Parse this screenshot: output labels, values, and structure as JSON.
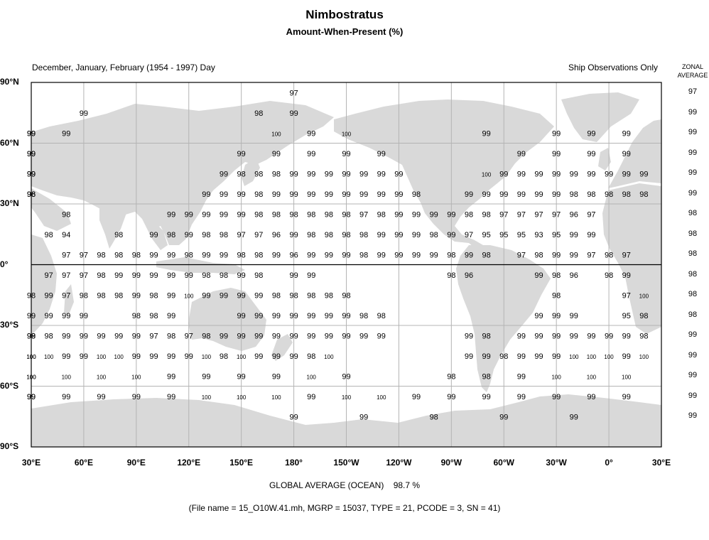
{
  "title": "Nimbostratus",
  "subtitle": "Amount-When-Present (%)",
  "header_left": "December, January, February (1954 - 1997) Day",
  "header_right": "Ship Observations Only",
  "zonal_title_line1": "ZONAL",
  "zonal_title_line2": "AVERAGE",
  "lat_labels": [
    "90°N",
    "60°N",
    "30°N",
    "0°",
    "30°S",
    "60°S",
    "90°S"
  ],
  "lon_labels": [
    "30°E",
    "60°E",
    "90°E",
    "120°E",
    "150°E",
    "180°",
    "150°W",
    "120°W",
    "90°W",
    "60°W",
    "30°W",
    "0°",
    "30°E"
  ],
  "zonal_averages": [
    97,
    99,
    99,
    99,
    99,
    99,
    98,
    98,
    98,
    98,
    98,
    98,
    99,
    99,
    99,
    99,
    99
  ],
  "global_average_label": "GLOBAL AVERAGE (OCEAN)",
  "global_average_value": "98.7 %",
  "file_info": "(File name = 15_O10W.41.mh, MGRP = 15037, TYPE = 21, PCODE = 3, SN = 41)",
  "colors": {
    "land": "#d9d9d9",
    "grid": "#b4b4b4",
    "frame": "#000000"
  },
  "grid_rows": [
    {
      "lat": 85,
      "cells": [
        [
          180,
          97
        ]
      ]
    },
    {
      "lat": 75,
      "cells": [
        [
          60,
          99
        ],
        [
          180,
          99
        ],
        [
          160,
          98
        ]
      ]
    },
    {
      "lat": 65,
      "cells": [
        [
          30,
          99
        ],
        [
          50,
          99
        ],
        [
          170,
          100
        ],
        [
          190,
          99
        ],
        [
          210,
          100
        ],
        [
          290,
          99
        ],
        [
          330,
          99
        ],
        [
          350,
          99
        ],
        [
          10,
          99
        ],
        [
          30,
          99
        ]
      ]
    },
    {
      "lat": 55,
      "cells": [
        [
          30,
          99
        ],
        [
          150,
          99
        ],
        [
          170,
          99
        ],
        [
          190,
          99
        ],
        [
          210,
          99
        ],
        [
          230,
          99
        ],
        [
          310,
          99
        ],
        [
          330,
          99
        ],
        [
          350,
          99
        ],
        [
          10,
          99
        ],
        [
          30,
          99
        ]
      ]
    },
    {
      "lat": 45,
      "cells": [
        [
          30,
          99
        ],
        [
          140,
          99
        ],
        [
          150,
          98
        ],
        [
          160,
          98
        ],
        [
          170,
          98
        ],
        [
          180,
          99
        ],
        [
          190,
          99
        ],
        [
          200,
          99
        ],
        [
          210,
          99
        ],
        [
          220,
          99
        ],
        [
          230,
          99
        ],
        [
          240,
          99
        ],
        [
          290,
          100
        ],
        [
          300,
          99
        ],
        [
          310,
          99
        ],
        [
          320,
          99
        ],
        [
          330,
          99
        ],
        [
          340,
          99
        ],
        [
          350,
          99
        ],
        [
          0,
          99
        ],
        [
          10,
          99
        ],
        [
          20,
          99
        ],
        [
          30,
          99
        ]
      ]
    },
    {
      "lat": 35,
      "cells": [
        [
          30,
          96
        ],
        [
          130,
          99
        ],
        [
          140,
          99
        ],
        [
          150,
          99
        ],
        [
          160,
          98
        ],
        [
          170,
          99
        ],
        [
          180,
          99
        ],
        [
          190,
          99
        ],
        [
          200,
          99
        ],
        [
          210,
          99
        ],
        [
          220,
          99
        ],
        [
          230,
          99
        ],
        [
          240,
          99
        ],
        [
          250,
          98
        ],
        [
          280,
          99
        ],
        [
          290,
          99
        ],
        [
          300,
          99
        ],
        [
          310,
          99
        ],
        [
          320,
          99
        ],
        [
          330,
          99
        ],
        [
          340,
          98
        ],
        [
          350,
          98
        ],
        [
          0,
          98
        ],
        [
          10,
          98
        ],
        [
          20,
          98
        ],
        [
          30,
          98
        ]
      ]
    },
    {
      "lat": 25,
      "cells": [
        [
          50,
          98
        ],
        [
          110,
          99
        ],
        [
          120,
          99
        ],
        [
          130,
          99
        ],
        [
          140,
          99
        ],
        [
          150,
          99
        ],
        [
          160,
          98
        ],
        [
          170,
          98
        ],
        [
          180,
          98
        ],
        [
          190,
          98
        ],
        [
          200,
          98
        ],
        [
          210,
          98
        ],
        [
          220,
          97
        ],
        [
          230,
          98
        ],
        [
          240,
          99
        ],
        [
          250,
          99
        ],
        [
          260,
          99
        ],
        [
          270,
          99
        ],
        [
          280,
          98
        ],
        [
          290,
          98
        ],
        [
          300,
          97
        ],
        [
          310,
          97
        ],
        [
          320,
          97
        ],
        [
          330,
          97
        ],
        [
          340,
          96
        ],
        [
          350,
          97
        ]
      ]
    },
    {
      "lat": 15,
      "cells": [
        [
          40,
          98
        ],
        [
          50,
          94
        ],
        [
          80,
          98
        ],
        [
          100,
          99
        ],
        [
          110,
          98
        ],
        [
          120,
          99
        ],
        [
          130,
          98
        ],
        [
          140,
          98
        ],
        [
          150,
          97
        ],
        [
          160,
          97
        ],
        [
          170,
          96
        ],
        [
          180,
          99
        ],
        [
          190,
          98
        ],
        [
          200,
          98
        ],
        [
          210,
          98
        ],
        [
          220,
          98
        ],
        [
          230,
          99
        ],
        [
          240,
          99
        ],
        [
          250,
          99
        ],
        [
          260,
          98
        ],
        [
          270,
          99
        ],
        [
          280,
          97
        ],
        [
          290,
          95
        ],
        [
          300,
          95
        ],
        [
          310,
          95
        ],
        [
          320,
          93
        ],
        [
          330,
          95
        ],
        [
          340,
          99
        ],
        [
          350,
          99
        ]
      ]
    },
    {
      "lat": 5,
      "cells": [
        [
          50,
          97
        ],
        [
          60,
          97
        ],
        [
          70,
          98
        ],
        [
          80,
          98
        ],
        [
          90,
          98
        ],
        [
          100,
          99
        ],
        [
          110,
          99
        ],
        [
          120,
          98
        ],
        [
          130,
          99
        ],
        [
          140,
          99
        ],
        [
          150,
          98
        ],
        [
          160,
          98
        ],
        [
          170,
          99
        ],
        [
          180,
          96
        ],
        [
          190,
          99
        ],
        [
          200,
          99
        ],
        [
          210,
          99
        ],
        [
          220,
          98
        ],
        [
          230,
          99
        ],
        [
          240,
          99
        ],
        [
          250,
          99
        ],
        [
          260,
          99
        ],
        [
          270,
          98
        ],
        [
          280,
          99
        ],
        [
          290,
          98
        ],
        [
          310,
          97
        ],
        [
          320,
          98
        ],
        [
          330,
          99
        ],
        [
          340,
          99
        ],
        [
          350,
          97
        ],
        [
          0,
          98
        ],
        [
          10,
          97
        ]
      ]
    },
    {
      "lat": -5,
      "cells": [
        [
          40,
          97
        ],
        [
          50,
          97
        ],
        [
          60,
          97
        ],
        [
          70,
          98
        ],
        [
          80,
          99
        ],
        [
          90,
          99
        ],
        [
          100,
          99
        ],
        [
          110,
          99
        ],
        [
          120,
          99
        ],
        [
          130,
          98
        ],
        [
          140,
          98
        ],
        [
          150,
          99
        ],
        [
          160,
          98
        ],
        [
          180,
          99
        ],
        [
          190,
          99
        ],
        [
          270,
          98
        ],
        [
          280,
          96
        ],
        [
          320,
          99
        ],
        [
          330,
          98
        ],
        [
          340,
          96
        ],
        [
          0,
          98
        ],
        [
          10,
          99
        ]
      ]
    },
    {
      "lat": -15,
      "cells": [
        [
          30,
          98
        ],
        [
          40,
          99
        ],
        [
          50,
          97
        ],
        [
          60,
          98
        ],
        [
          70,
          98
        ],
        [
          80,
          98
        ],
        [
          90,
          99
        ],
        [
          100,
          98
        ],
        [
          110,
          99
        ],
        [
          120,
          100
        ],
        [
          130,
          99
        ],
        [
          140,
          99
        ],
        [
          150,
          99
        ],
        [
          160,
          99
        ],
        [
          170,
          98
        ],
        [
          180,
          98
        ],
        [
          190,
          98
        ],
        [
          200,
          98
        ],
        [
          210,
          98
        ],
        [
          330,
          98
        ],
        [
          10,
          97
        ],
        [
          20,
          100
        ]
      ]
    },
    {
      "lat": -25,
      "cells": [
        [
          30,
          99
        ],
        [
          40,
          99
        ],
        [
          50,
          99
        ],
        [
          60,
          99
        ],
        [
          90,
          98
        ],
        [
          100,
          98
        ],
        [
          110,
          99
        ],
        [
          150,
          99
        ],
        [
          160,
          99
        ],
        [
          170,
          99
        ],
        [
          180,
          99
        ],
        [
          190,
          99
        ],
        [
          200,
          99
        ],
        [
          210,
          99
        ],
        [
          220,
          98
        ],
        [
          230,
          98
        ],
        [
          320,
          99
        ],
        [
          330,
          99
        ],
        [
          340,
          99
        ],
        [
          10,
          95
        ],
        [
          20,
          98
        ]
      ]
    },
    {
      "lat": -35,
      "cells": [
        [
          30,
          99
        ],
        [
          40,
          98
        ],
        [
          50,
          99
        ],
        [
          60,
          99
        ],
        [
          70,
          99
        ],
        [
          80,
          99
        ],
        [
          90,
          99
        ],
        [
          100,
          97
        ],
        [
          110,
          98
        ],
        [
          120,
          97
        ],
        [
          130,
          98
        ],
        [
          140,
          99
        ],
        [
          150,
          99
        ],
        [
          160,
          99
        ],
        [
          170,
          99
        ],
        [
          180,
          99
        ],
        [
          190,
          99
        ],
        [
          200,
          99
        ],
        [
          210,
          99
        ],
        [
          220,
          99
        ],
        [
          230,
          99
        ],
        [
          280,
          99
        ],
        [
          290,
          98
        ],
        [
          310,
          99
        ],
        [
          320,
          99
        ],
        [
          330,
          99
        ],
        [
          340,
          99
        ],
        [
          350,
          99
        ],
        [
          0,
          99
        ],
        [
          10,
          99
        ],
        [
          20,
          98
        ],
        [
          30,
          98
        ]
      ]
    },
    {
      "lat": -45,
      "cells": [
        [
          30,
          100
        ],
        [
          40,
          100
        ],
        [
          50,
          99
        ],
        [
          60,
          99
        ],
        [
          70,
          100
        ],
        [
          80,
          100
        ],
        [
          90,
          99
        ],
        [
          100,
          99
        ],
        [
          110,
          99
        ],
        [
          120,
          99
        ],
        [
          130,
          100
        ],
        [
          140,
          98
        ],
        [
          150,
          100
        ],
        [
          160,
          99
        ],
        [
          170,
          99
        ],
        [
          180,
          99
        ],
        [
          190,
          98
        ],
        [
          200,
          100
        ],
        [
          280,
          99
        ],
        [
          290,
          99
        ],
        [
          300,
          98
        ],
        [
          310,
          99
        ],
        [
          320,
          99
        ],
        [
          330,
          99
        ],
        [
          340,
          100
        ],
        [
          350,
          100
        ],
        [
          0,
          100
        ],
        [
          10,
          99
        ],
        [
          20,
          100
        ],
        [
          30,
          100
        ]
      ]
    },
    {
      "lat": -55,
      "cells": [
        [
          30,
          100
        ],
        [
          50,
          100
        ],
        [
          70,
          100
        ],
        [
          90,
          100
        ],
        [
          110,
          99
        ],
        [
          130,
          99
        ],
        [
          150,
          99
        ],
        [
          170,
          99
        ],
        [
          190,
          100
        ],
        [
          210,
          99
        ],
        [
          270,
          98
        ],
        [
          290,
          98
        ],
        [
          310,
          99
        ],
        [
          330,
          100
        ],
        [
          350,
          100
        ],
        [
          10,
          100
        ],
        [
          30,
          100
        ]
      ]
    },
    {
      "lat": -65,
      "cells": [
        [
          30,
          99
        ],
        [
          50,
          99
        ],
        [
          70,
          99
        ],
        [
          90,
          99
        ],
        [
          110,
          99
        ],
        [
          130,
          100
        ],
        [
          150,
          100
        ],
        [
          170,
          100
        ],
        [
          190,
          99
        ],
        [
          210,
          100
        ],
        [
          230,
          100
        ],
        [
          250,
          99
        ],
        [
          270,
          99
        ],
        [
          290,
          99
        ],
        [
          310,
          99
        ],
        [
          330,
          99
        ],
        [
          350,
          99
        ],
        [
          10,
          99
        ],
        [
          30,
          99
        ]
      ]
    },
    {
      "lat": -75,
      "cells": [
        [
          180,
          99
        ],
        [
          220,
          99
        ],
        [
          260,
          98
        ],
        [
          300,
          99
        ],
        [
          340,
          99
        ]
      ]
    }
  ]
}
